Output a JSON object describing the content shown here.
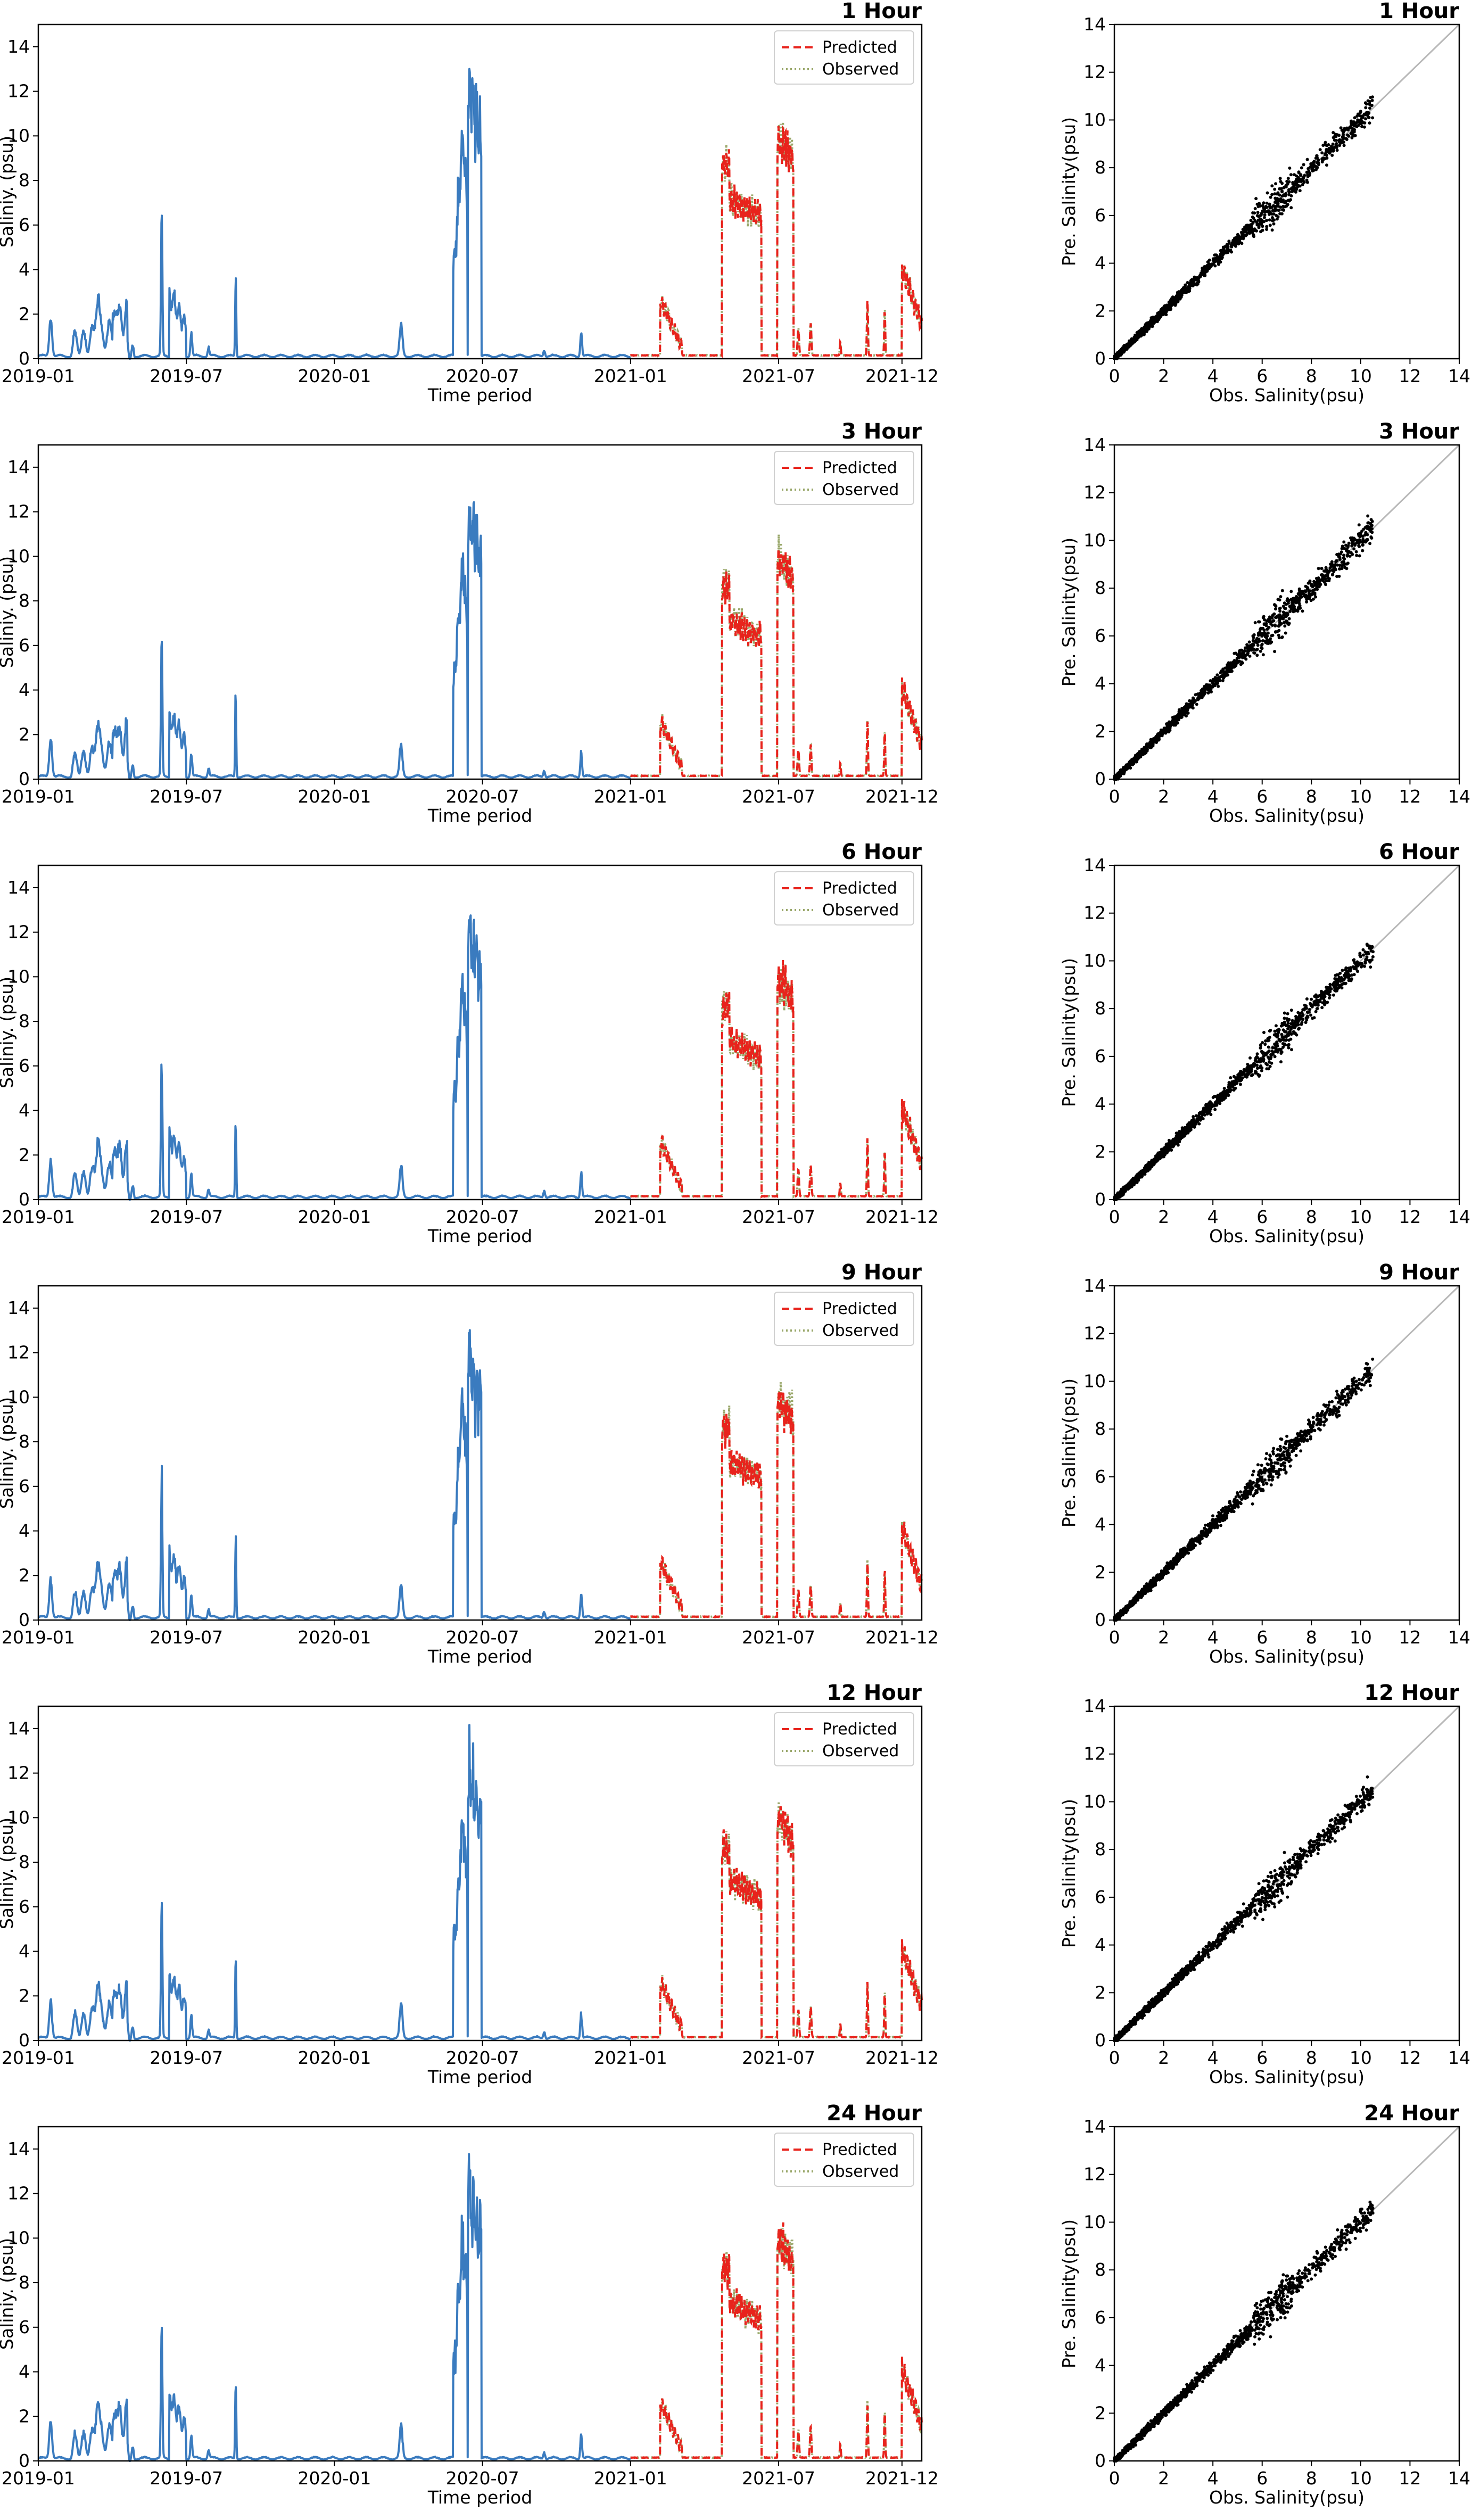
{
  "colors": {
    "historical": "#3a7bbf",
    "predicted": "#e8231c",
    "observed": "#9aa86b",
    "scatter": "#000000",
    "identity_line": "#b8b8b8",
    "frame": "#000000"
  },
  "chart_data": [
    {
      "type": "line",
      "panel": "ts",
      "row": 0,
      "title": "1 Hour",
      "xlabel": "Time period",
      "ylabel": "Saliniy. (psu)",
      "x_ticks": [
        "2019-01",
        "2019-07",
        "2020-01",
        "2020-07",
        "2021-01",
        "2021-07",
        "2021-12"
      ],
      "y_ticks": [
        0,
        2,
        4,
        6,
        8,
        10,
        12,
        14
      ],
      "ylim": [
        0,
        15
      ],
      "series": [
        {
          "name": "Predicted",
          "style": "dashed"
        },
        {
          "name": "Observed",
          "style": "dotted"
        }
      ],
      "legend": "top-right"
    },
    {
      "type": "scatter",
      "panel": "sc",
      "row": 0,
      "title": "1 Hour",
      "xlabel": "Obs. Salinity(psu)",
      "ylabel": "Pre. Salinity(psu)",
      "x_ticks": [
        0,
        2,
        4,
        6,
        8,
        10,
        12,
        14
      ],
      "y_ticks": [
        0,
        2,
        4,
        6,
        8,
        10,
        12,
        14
      ],
      "xlim": [
        0,
        14
      ],
      "ylim": [
        0,
        14
      ]
    },
    {
      "type": "line",
      "panel": "ts",
      "row": 1,
      "title": "3 Hour",
      "xlabel": "Time period",
      "ylabel": "Saliniy. (psu)",
      "x_ticks": [
        "2019-01",
        "2019-07",
        "2020-01",
        "2020-07",
        "2021-01",
        "2021-07",
        "2021-12"
      ],
      "y_ticks": [
        0,
        2,
        4,
        6,
        8,
        10,
        12,
        14
      ],
      "ylim": [
        0,
        15
      ],
      "series": [
        {
          "name": "Predicted",
          "style": "dashed"
        },
        {
          "name": "Observed",
          "style": "dotted"
        }
      ],
      "legend": "top-right"
    },
    {
      "type": "scatter",
      "panel": "sc",
      "row": 1,
      "title": "3 Hour",
      "xlabel": "Obs. Salinity(psu)",
      "ylabel": "Pre. Salinity(psu)",
      "x_ticks": [
        0,
        2,
        4,
        6,
        8,
        10,
        12,
        14
      ],
      "y_ticks": [
        0,
        2,
        4,
        6,
        8,
        10,
        12,
        14
      ],
      "xlim": [
        0,
        14
      ],
      "ylim": [
        0,
        14
      ]
    },
    {
      "type": "line",
      "panel": "ts",
      "row": 2,
      "title": "6 Hour",
      "xlabel": "Time period",
      "ylabel": "Saliniy. (psu)",
      "x_ticks": [
        "2019-01",
        "2019-07",
        "2020-01",
        "2020-07",
        "2021-01",
        "2021-07",
        "2021-12"
      ],
      "y_ticks": [
        0,
        2,
        4,
        6,
        8,
        10,
        12,
        14
      ],
      "ylim": [
        0,
        15
      ],
      "series": [
        {
          "name": "Predicted",
          "style": "dashed"
        },
        {
          "name": "Observed",
          "style": "dotted"
        }
      ],
      "legend": "top-right"
    },
    {
      "type": "scatter",
      "panel": "sc",
      "row": 2,
      "title": "6 Hour",
      "xlabel": "Obs. Salinity(psu)",
      "ylabel": "Pre. Salinity(psu)",
      "x_ticks": [
        0,
        2,
        4,
        6,
        8,
        10,
        12,
        14
      ],
      "y_ticks": [
        0,
        2,
        4,
        6,
        8,
        10,
        12,
        14
      ],
      "xlim": [
        0,
        14
      ],
      "ylim": [
        0,
        14
      ]
    },
    {
      "type": "line",
      "panel": "ts",
      "row": 3,
      "title": "9 Hour",
      "xlabel": "Time period",
      "ylabel": "Saliniy. (psu)",
      "x_ticks": [
        "2019-01",
        "2019-07",
        "2020-01",
        "2020-07",
        "2021-01",
        "2021-07",
        "2021-12"
      ],
      "y_ticks": [
        0,
        2,
        4,
        6,
        8,
        10,
        12,
        14
      ],
      "ylim": [
        0,
        15
      ],
      "series": [
        {
          "name": "Predicted",
          "style": "dashed"
        },
        {
          "name": "Observed",
          "style": "dotted"
        }
      ],
      "legend": "top-right"
    },
    {
      "type": "scatter",
      "panel": "sc",
      "row": 3,
      "title": "9 Hour",
      "xlabel": "Obs. Salinity(psu)",
      "ylabel": "Pre. Salinity(psu)",
      "x_ticks": [
        0,
        2,
        4,
        6,
        8,
        10,
        12,
        14
      ],
      "y_ticks": [
        0,
        2,
        4,
        6,
        8,
        10,
        12,
        14
      ],
      "xlim": [
        0,
        14
      ],
      "ylim": [
        0,
        14
      ]
    },
    {
      "type": "line",
      "panel": "ts",
      "row": 4,
      "title": "12 Hour",
      "xlabel": "Time period",
      "ylabel": "Saliniy. (psu)",
      "x_ticks": [
        "2019-01",
        "2019-07",
        "2020-01",
        "2020-07",
        "2021-01",
        "2021-07",
        "2021-12"
      ],
      "y_ticks": [
        0,
        2,
        4,
        6,
        8,
        10,
        12,
        14
      ],
      "ylim": [
        0,
        15
      ],
      "series": [
        {
          "name": "Predicted",
          "style": "dashed"
        },
        {
          "name": "Observed",
          "style": "dotted"
        }
      ],
      "legend": "top-right"
    },
    {
      "type": "scatter",
      "panel": "sc",
      "row": 4,
      "title": "12 Hour",
      "xlabel": "Obs. Salinity(psu)",
      "ylabel": "Pre. Salinity(psu)",
      "x_ticks": [
        0,
        2,
        4,
        6,
        8,
        10,
        12,
        14
      ],
      "y_ticks": [
        0,
        2,
        4,
        6,
        8,
        10,
        12,
        14
      ],
      "xlim": [
        0,
        14
      ],
      "ylim": [
        0,
        14
      ]
    },
    {
      "type": "line",
      "panel": "ts",
      "row": 5,
      "title": "24 Hour",
      "xlabel": "Time period",
      "ylabel": "Saliniy. (psu)",
      "x_ticks": [
        "2019-01",
        "2019-07",
        "2020-01",
        "2020-07",
        "2021-01",
        "2021-07",
        "2021-12"
      ],
      "y_ticks": [
        0,
        2,
        4,
        6,
        8,
        10,
        12,
        14
      ],
      "ylim": [
        0,
        15
      ],
      "series": [
        {
          "name": "Predicted",
          "style": "dashed"
        },
        {
          "name": "Observed",
          "style": "dotted"
        }
      ],
      "legend": "top-right"
    },
    {
      "type": "scatter",
      "panel": "sc",
      "row": 5,
      "title": "24 Hour",
      "xlabel": "Obs. Salinity(psu)",
      "ylabel": "Pre. Salinity(psu)",
      "x_ticks": [
        0,
        2,
        4,
        6,
        8,
        10,
        12,
        14
      ],
      "y_ticks": [
        0,
        2,
        4,
        6,
        8,
        10,
        12,
        14
      ],
      "xlim": [
        0,
        14
      ],
      "ylim": [
        0,
        14
      ]
    }
  ]
}
